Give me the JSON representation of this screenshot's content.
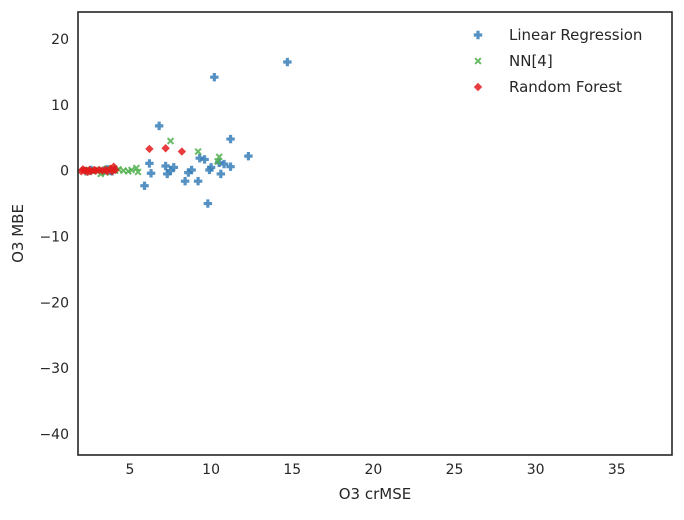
{
  "chart_data": {
    "type": "scatter",
    "title": "",
    "xlabel": "O3 crMSE",
    "ylabel": "O3 MBE",
    "xlim": [
      1.8,
      38.4
    ],
    "ylim": [
      -43.2,
      24.1
    ],
    "xticks": [
      5,
      10,
      15,
      20,
      25,
      30,
      35
    ],
    "yticks": [
      -40,
      -30,
      -20,
      -10,
      0,
      10,
      20
    ],
    "grid": false,
    "legend_position": "top-right",
    "series": [
      {
        "name": "Linear Regression",
        "marker": "plus",
        "color": "#377eb8",
        "points": [
          [
            10.2,
            14.2
          ],
          [
            14.7,
            16.5
          ],
          [
            6.8,
            6.8
          ],
          [
            11.2,
            4.8
          ],
          [
            12.3,
            2.2
          ],
          [
            9.3,
            1.9
          ],
          [
            9.6,
            1.7
          ],
          [
            10.5,
            1.2
          ],
          [
            10.8,
            1.0
          ],
          [
            11.2,
            0.6
          ],
          [
            10.0,
            0.5
          ],
          [
            9.9,
            0.1
          ],
          [
            6.2,
            1.1
          ],
          [
            7.2,
            0.7
          ],
          [
            7.7,
            0.5
          ],
          [
            7.5,
            0.0
          ],
          [
            7.3,
            -0.5
          ],
          [
            8.8,
            0.1
          ],
          [
            8.6,
            -0.3
          ],
          [
            8.4,
            -1.6
          ],
          [
            9.2,
            -1.6
          ],
          [
            10.6,
            -0.5
          ],
          [
            6.3,
            -0.4
          ],
          [
            5.9,
            -2.3
          ],
          [
            9.8,
            -5.0
          ],
          [
            3.6,
            0.2
          ],
          [
            3.4,
            0.0
          ],
          [
            2.6,
            0.1
          ],
          [
            2.3,
            -0.1
          ],
          [
            3.9,
            -0.1
          ],
          [
            4.1,
            0.2
          ],
          [
            3.8,
            0.0
          ]
        ]
      },
      {
        "name": "NN[4]",
        "marker": "x",
        "color": "#4daf4a",
        "points": [
          [
            7.5,
            4.5
          ],
          [
            9.2,
            2.9
          ],
          [
            10.5,
            2.1
          ],
          [
            10.4,
            1.4
          ],
          [
            5.4,
            0.4
          ],
          [
            5.5,
            -0.2
          ],
          [
            5.1,
            0.1
          ],
          [
            4.6,
            0.0
          ],
          [
            4.9,
            -0.1
          ],
          [
            4.3,
            0.2
          ],
          [
            4.1,
            0.0
          ],
          [
            3.8,
            0.1
          ],
          [
            3.6,
            0.3
          ],
          [
            3.3,
            0.1
          ],
          [
            3.0,
            -0.1
          ],
          [
            3.2,
            -0.5
          ],
          [
            3.5,
            -0.3
          ],
          [
            2.9,
            0.1
          ],
          [
            2.6,
            0.0
          ],
          [
            2.2,
            0.1
          ],
          [
            2.4,
            -0.2
          ]
        ]
      },
      {
        "name": "Random Forest",
        "marker": "diamond",
        "color": "#e41a1c",
        "points": [
          [
            6.2,
            3.3
          ],
          [
            7.2,
            3.4
          ],
          [
            8.2,
            2.9
          ],
          [
            4.0,
            0.6
          ],
          [
            3.8,
            0.3
          ],
          [
            4.1,
            0.1
          ],
          [
            3.9,
            -0.1
          ],
          [
            3.5,
            0.1
          ],
          [
            3.3,
            0.0
          ],
          [
            2.8,
            0.1
          ],
          [
            2.6,
            -0.1
          ],
          [
            2.5,
            0.1
          ],
          [
            2.3,
            0.0
          ],
          [
            2.1,
            0.2
          ],
          [
            2.0,
            -0.1
          ],
          [
            2.2,
            0.0
          ],
          [
            2.4,
            -0.2
          ],
          [
            2.9,
            0.0
          ],
          [
            3.1,
            0.1
          ],
          [
            3.6,
            -0.1
          ]
        ]
      }
    ]
  }
}
